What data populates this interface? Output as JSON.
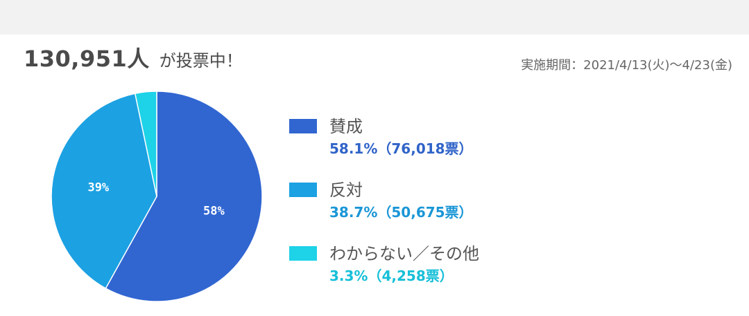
{
  "headline": {
    "count": "130,951人",
    "suffix": "が投票中！"
  },
  "period": "実施期間：2021/4/13(火)～4/23(金)",
  "chart_data": {
    "type": "pie",
    "slices": [
      {
        "label": "賛成",
        "value": 58.1,
        "pie_label": "58%",
        "detail": "58.1%（76,018票）",
        "color": "#3166d1",
        "value_color": "#2f63c8"
      },
      {
        "label": "反対",
        "value": 38.7,
        "pie_label": "39%",
        "detail": "38.7%（50,675票）",
        "color": "#1ca1e3",
        "value_color": "#1a96d6"
      },
      {
        "label": "わからない／その他",
        "value": 3.3,
        "pie_label": "",
        "detail": "3.3%（4,258票）",
        "color": "#1ed2e8",
        "value_color": "#16bfd8"
      }
    ],
    "start_angle_deg": 0,
    "direction": "clockwise"
  }
}
